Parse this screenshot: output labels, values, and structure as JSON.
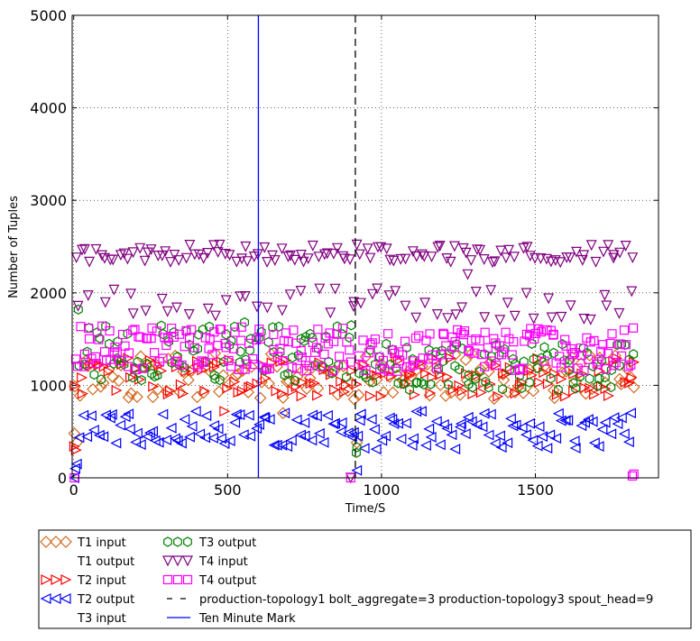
{
  "chart_data": {
    "type": "scatter",
    "xlabel": "Time/S",
    "ylabel": "Number of Tuples",
    "xlim": [
      -5,
      1900
    ],
    "ylim": [
      0,
      5000
    ],
    "xticks": [
      0,
      500,
      1000,
      1500
    ],
    "xtick_labels": [
      "0",
      "500",
      "1000",
      "1500"
    ],
    "yticks": [
      0,
      1000,
      2000,
      3000,
      4000,
      5000
    ],
    "ytick_labels": [
      "0",
      "1000",
      "2000",
      "3000",
      "4000",
      "5000"
    ],
    "grid": true,
    "legend_position": "bottom",
    "series": [
      {
        "name": "T1 input",
        "marker": "diamond",
        "color": "#d2691e",
        "segments": [
          {
            "x0": 0,
            "x1": 1820,
            "n": 120,
            "lo": 850,
            "hi": 1350,
            "seed": 11
          }
        ],
        "extra": [
          [
            2,
            480
          ],
          [
            10,
            380
          ],
          [
            680,
            700
          ],
          [
            920,
            380
          ],
          [
            1820,
            980
          ]
        ]
      },
      {
        "name": "T1 output",
        "marker": "none",
        "color": "#000000",
        "segments": []
      },
      {
        "name": "T2 input",
        "marker": "triangle-right",
        "color": "#ff0000",
        "segments": [
          {
            "x0": 0,
            "x1": 1820,
            "n": 130,
            "lo": 880,
            "hi": 1300,
            "seed": 22
          }
        ],
        "extra": [
          [
            2,
            340
          ],
          [
            8,
            300
          ],
          [
            490,
            720
          ],
          [
            1820,
            1250
          ]
        ]
      },
      {
        "name": "T2 output",
        "marker": "triangle-left",
        "color": "#0000ff",
        "segments": [
          {
            "x0": 15,
            "x1": 905,
            "n": 75,
            "lo": 330,
            "hi": 720,
            "seed": 33
          },
          {
            "x0": 920,
            "x1": 1820,
            "n": 75,
            "lo": 300,
            "hi": 720,
            "seed": 34
          }
        ],
        "extra": [
          [
            2,
            0
          ],
          [
            5,
            100
          ],
          [
            10,
            150
          ],
          [
            920,
            80
          ],
          [
            910,
            490
          ],
          [
            930,
            620
          ]
        ]
      },
      {
        "name": "T3 input",
        "marker": "none",
        "color": "#000000",
        "segments": []
      },
      {
        "name": "T3 output",
        "marker": "hexagon",
        "color": "#008000",
        "segments": [
          {
            "x0": 15,
            "x1": 910,
            "n": 85,
            "lo": 1050,
            "hi": 1650,
            "seed": 44
          },
          {
            "x0": 925,
            "x1": 1820,
            "n": 85,
            "lo": 950,
            "hi": 1450,
            "seed": 45
          }
        ],
        "extra": [
          [
            15,
            1820
          ],
          [
            555,
            1680
          ],
          [
            920,
            330
          ],
          [
            918,
            270
          ]
        ]
      },
      {
        "name": "T4 input",
        "marker": "triangle-down",
        "color": "#800080",
        "segments": [
          {
            "x0": 5,
            "x1": 910,
            "n": 60,
            "lo": 2330,
            "hi": 2520,
            "seed": 55
          },
          {
            "x0": 5,
            "x1": 910,
            "n": 25,
            "lo": 1750,
            "hi": 2050,
            "seed": 56
          },
          {
            "x0": 925,
            "x1": 1820,
            "n": 55,
            "lo": 2330,
            "hi": 2520,
            "seed": 57
          },
          {
            "x0": 925,
            "x1": 1820,
            "n": 30,
            "lo": 1700,
            "hi": 2050,
            "seed": 58
          }
        ],
        "extra": [
          [
            920,
            2520
          ],
          [
            910,
            1900
          ],
          [
            1280,
            2200
          ],
          [
            900,
            0
          ]
        ]
      },
      {
        "name": "T4 output",
        "marker": "square",
        "color": "#ff00ff",
        "segments": [
          {
            "x0": 5,
            "x1": 905,
            "n": 120,
            "lo": 1150,
            "hi": 1650,
            "seed": 66
          },
          {
            "x0": 925,
            "x1": 1820,
            "n": 120,
            "lo": 1150,
            "hi": 1620,
            "seed": 67
          }
        ],
        "extra": [
          [
            2,
            0
          ],
          [
            900,
            0
          ],
          [
            1820,
            40
          ],
          [
            1815,
            20
          ]
        ]
      },
      {
        "name": "production-topology1 bolt_aggregate=3 production-topology3 spout_head=9",
        "marker": "vline",
        "style": "dashed",
        "color": "#000000",
        "x": 915
      },
      {
        "name": "Ten Minute Mark",
        "marker": "vline",
        "style": "solid",
        "color": "#0000ff",
        "x": 600
      }
    ]
  }
}
